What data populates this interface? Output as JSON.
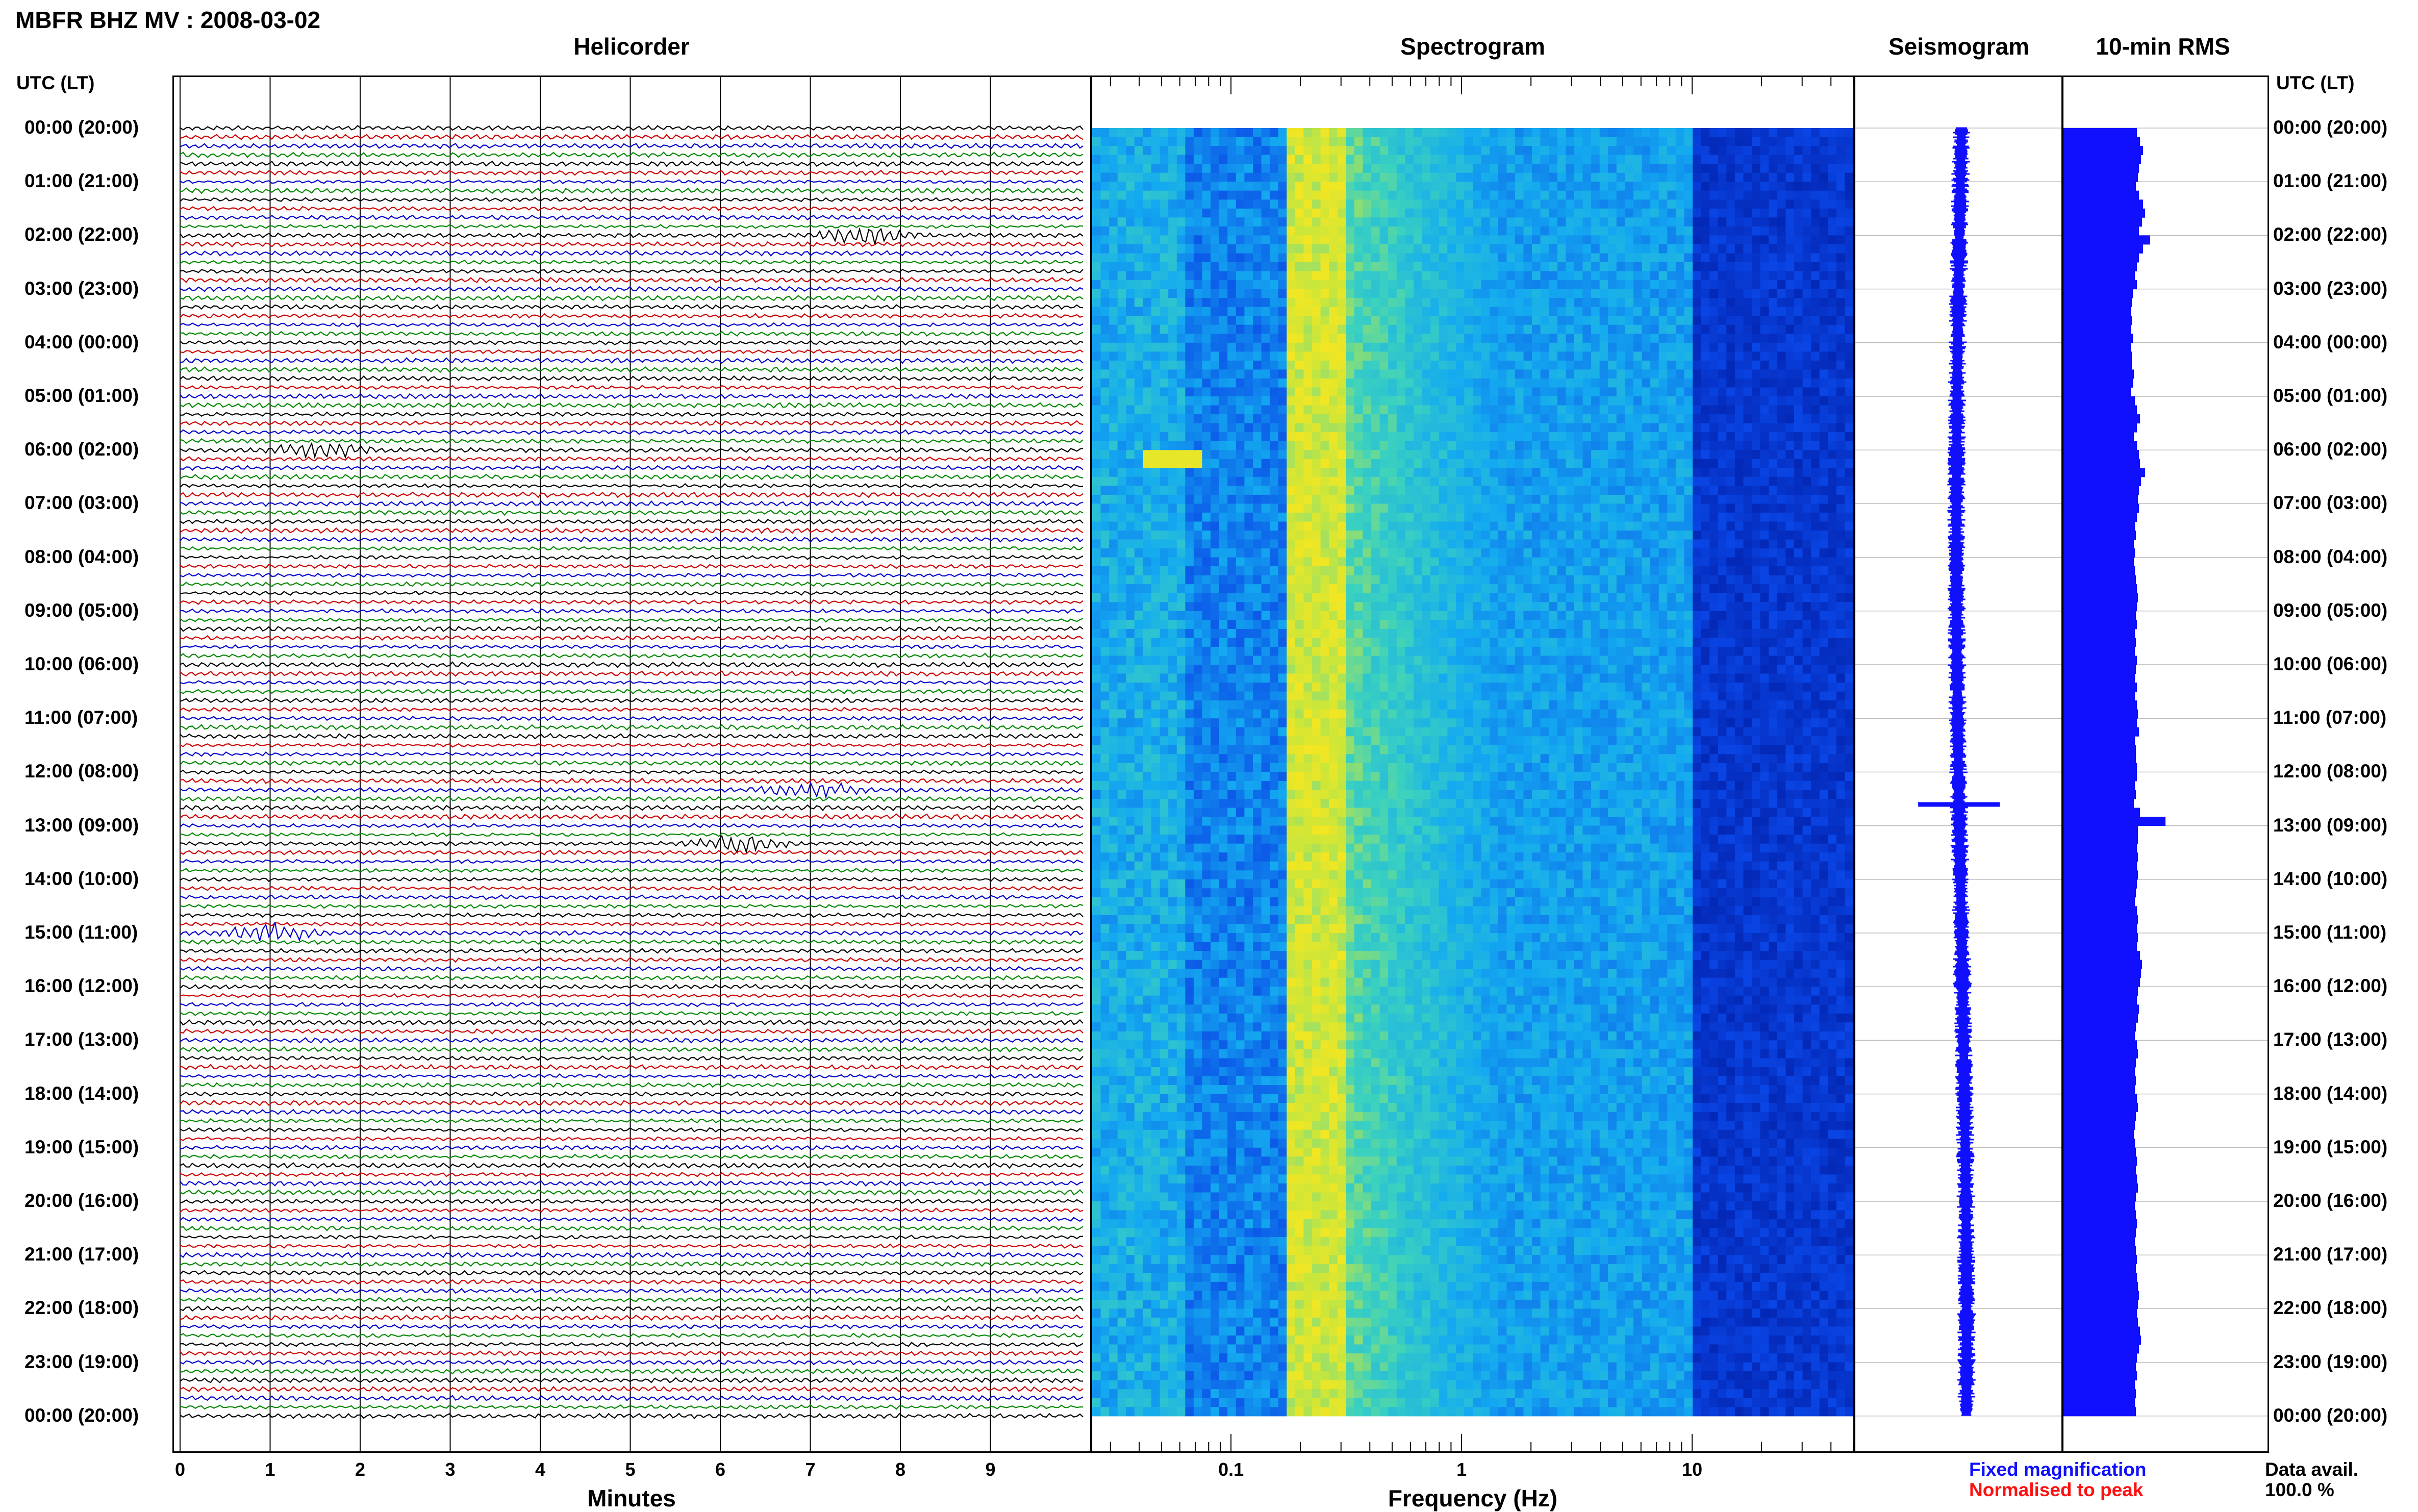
{
  "header": {
    "title": "MBFR BHZ MV : 2008-03-02",
    "panels": [
      "Helicorder",
      "Spectrogram",
      "Seismogram",
      "10-min RMS"
    ]
  },
  "axes": {
    "time_label": "UTC (LT)",
    "time_ticks": [
      "00:00 (20:00)",
      "01:00 (21:00)",
      "02:00 (22:00)",
      "03:00 (23:00)",
      "04:00 (00:00)",
      "05:00 (01:00)",
      "06:00 (02:00)",
      "07:00 (03:00)",
      "08:00 (04:00)",
      "09:00 (05:00)",
      "10:00 (06:00)",
      "11:00 (07:00)",
      "12:00 (08:00)",
      "13:00 (09:00)",
      "14:00 (10:00)",
      "15:00 (11:00)",
      "16:00 (12:00)",
      "17:00 (13:00)",
      "18:00 (14:00)",
      "19:00 (15:00)",
      "20:00 (16:00)",
      "21:00 (17:00)",
      "22:00 (18:00)",
      "23:00 (19:00)",
      "00:00 (20:00)"
    ],
    "minutes_label": "Minutes",
    "minute_ticks": [
      "0",
      "1",
      "2",
      "3",
      "4",
      "5",
      "6",
      "7",
      "8",
      "9"
    ],
    "freq_label": "Frequency (Hz)",
    "freq_ticks": [
      "0.1",
      "1",
      "10"
    ]
  },
  "legend": {
    "fixed": "Fixed magnification",
    "normalised": "Normalised to peak",
    "avail_label": "Data avail.",
    "avail_value": "100.0 %",
    "colors": {
      "fixed": "#1010ff",
      "normalised": "#ff1010"
    }
  },
  "chart_data": {
    "type": "heatmap",
    "station": "MBFR BHZ MV",
    "date": "2008-03-02",
    "helicorder": {
      "line_minutes": 10,
      "lines": 144,
      "trace_colors": [
        "#000000",
        "#cc0000",
        "#0000cc",
        "#008800"
      ],
      "events": [
        {
          "hour": 12.3,
          "minute": 7.0,
          "color": "green"
        },
        {
          "hour": 13.3,
          "minute": 6.2,
          "color": "red"
        },
        {
          "hour": 6.0,
          "minute": 1.6,
          "color": "red"
        },
        {
          "hour": 2.0,
          "minute": 7.6,
          "color": "green"
        },
        {
          "hour": 15.0,
          "minute": 1.0,
          "color": "blue"
        }
      ]
    },
    "spectrogram": {
      "freq_range_hz": [
        0.025,
        50
      ],
      "log_scale": true,
      "peak_band_hz": [
        0.17,
        0.3
      ],
      "note_band": {
        "hour": 6.1,
        "freq_hz": [
          0.04,
          0.07
        ]
      }
    },
    "rms_10min": [
      0.72,
      0.75,
      0.78,
      0.76,
      0.74,
      0.73,
      0.71,
      0.74,
      0.78,
      0.8,
      0.77,
      0.74,
      0.85,
      0.78,
      0.74,
      0.72,
      0.7,
      0.72,
      0.68,
      0.67,
      0.66,
      0.67,
      0.66,
      0.68,
      0.66,
      0.67,
      0.67,
      0.69,
      0.68,
      0.66,
      0.7,
      0.72,
      0.75,
      0.72,
      0.69,
      0.72,
      0.74,
      0.75,
      0.8,
      0.76,
      0.74,
      0.73,
      0.74,
      0.72,
      0.7,
      0.71,
      0.69,
      0.7,
      0.69,
      0.7,
      0.71,
      0.72,
      0.73,
      0.72,
      0.71,
      0.72,
      0.7,
      0.71,
      0.7,
      0.72,
      0.71,
      0.7,
      0.72,
      0.7,
      0.72,
      0.73,
      0.72,
      0.74,
      0.7,
      0.71,
      0.71,
      0.72,
      0.72,
      0.7,
      0.71,
      0.69,
      0.75,
      1.0,
      0.73,
      0.73,
      0.72,
      0.73,
      0.72,
      0.73,
      0.72,
      0.71,
      0.7,
      0.72,
      0.73,
      0.72,
      0.73,
      0.72,
      0.75,
      0.77,
      0.76,
      0.75,
      0.73,
      0.72,
      0.74,
      0.73,
      0.71,
      0.7,
      0.72,
      0.73,
      0.71,
      0.7,
      0.71,
      0.7,
      0.72,
      0.73,
      0.71,
      0.7,
      0.69,
      0.7,
      0.71,
      0.72,
      0.71,
      0.72,
      0.73,
      0.71,
      0.7,
      0.71,
      0.72,
      0.71,
      0.7,
      0.71,
      0.72,
      0.71,
      0.72,
      0.73,
      0.74,
      0.73,
      0.72,
      0.73,
      0.75,
      0.76,
      0.74,
      0.72,
      0.71,
      0.72,
      0.7,
      0.71,
      0.7,
      0.71
    ]
  }
}
